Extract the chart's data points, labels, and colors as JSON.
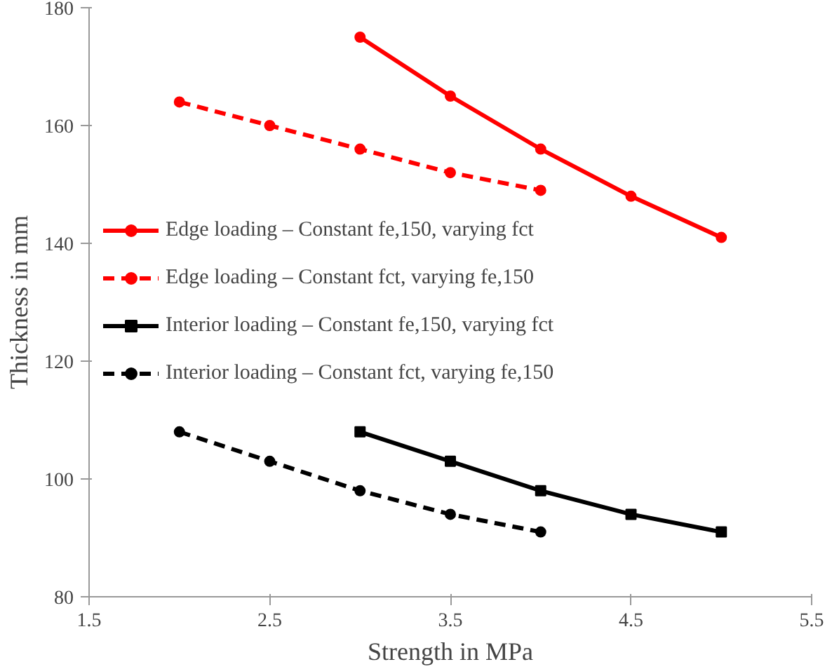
{
  "chart_data": {
    "type": "line",
    "xlabel": "Strength in MPa",
    "ylabel": "Thickness in mm",
    "xlim": [
      1.5,
      5.5
    ],
    "xticks": [
      1.5,
      2.5,
      3.5,
      4.5,
      5.5
    ],
    "ylim": [
      80,
      180
    ],
    "yticks": [
      80,
      100,
      120,
      140,
      160,
      180
    ],
    "grid": false,
    "legend": "left",
    "series": [
      {
        "name": "Edge loading – Constant fe,150, varying fct",
        "color": "#ff0000",
        "line_style": "solid",
        "marker": "circle",
        "x": [
          3,
          3.5,
          4,
          4.5,
          5
        ],
        "values": [
          175,
          165,
          156,
          148,
          141
        ]
      },
      {
        "name": "Edge loading – Constant fct, varying fe,150",
        "color": "#ff0000",
        "line_style": "dashed",
        "marker": "circle",
        "x": [
          2,
          2.5,
          3,
          3.5,
          4
        ],
        "values": [
          164,
          160,
          156,
          152,
          149
        ]
      },
      {
        "name": "Interior loading – Constant fe,150, varying fct",
        "color": "#000000",
        "line_style": "solid",
        "marker": "square",
        "x": [
          3,
          3.5,
          4,
          4.5,
          5
        ],
        "values": [
          108,
          103,
          98,
          94,
          91
        ]
      },
      {
        "name": "Interior loading – Constant fct, varying fe,150",
        "color": "#000000",
        "line_style": "dashed",
        "marker": "circle",
        "x": [
          2,
          2.5,
          3,
          3.5,
          4
        ],
        "values": [
          108,
          103,
          98,
          94,
          91
        ]
      }
    ]
  }
}
